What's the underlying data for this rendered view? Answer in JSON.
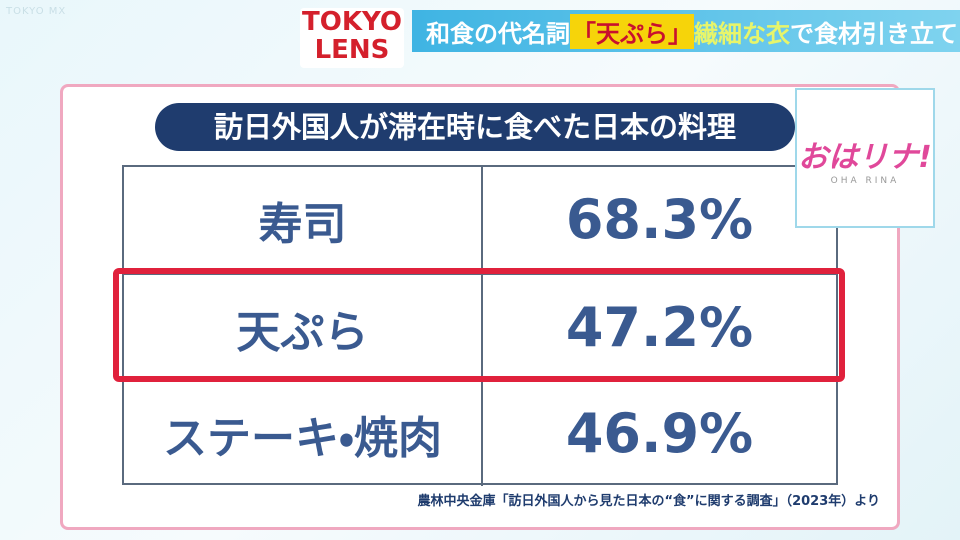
{
  "watermark": "TOKYO MX",
  "header": {
    "logo_line1": "TOKYO",
    "logo_line2": "LENS",
    "headline_parts": [
      "和食の代名詞",
      "「天ぷら」",
      "繊細な衣",
      "で食材引き立て"
    ]
  },
  "show_logo": {
    "title": "おはリナ!",
    "subtitle": "OHA RINA"
  },
  "table": {
    "title": "訪日外国人が滞在時に食べた日本の料理",
    "rows": [
      [
        "寿司",
        "68.3%"
      ],
      [
        "天ぷら",
        "47.2%"
      ],
      [
        "ステーキ・焼肉",
        "46.9%"
      ]
    ]
  },
  "source": "農林中央金庫「訪日外国人から見た日本の“食”に関する調査」（2023年）より"
}
